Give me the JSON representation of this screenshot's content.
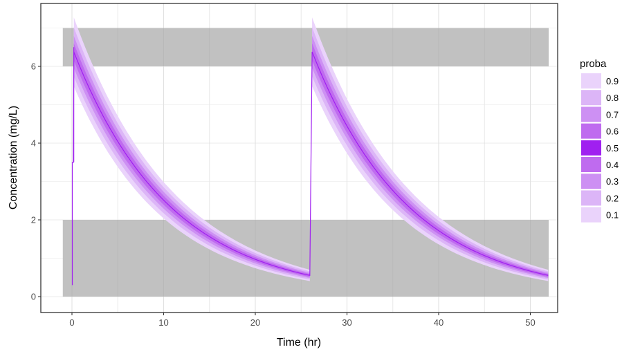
{
  "chart_data": {
    "type": "area",
    "title": "",
    "xlabel": "Time (hr)",
    "ylabel": "Concentration (mg/L)",
    "xlim": [
      -3.5,
      53
    ],
    "ylim": [
      -0.3,
      7.4
    ],
    "x_ticks": [
      0,
      10,
      20,
      30,
      40,
      50
    ],
    "y_ticks": [
      0,
      2,
      4,
      6
    ],
    "grid": true,
    "legend_position": "right",
    "legend": {
      "title": "proba",
      "entries": [
        {
          "label": "0.9",
          "color": "#ead3fb"
        },
        {
          "label": "0.8",
          "color": "#dcb5f7"
        },
        {
          "label": "0.7",
          "color": "#cd90f3"
        },
        {
          "label": "0.6",
          "color": "#bf6bef"
        },
        {
          "label": "0.5",
          "color": "#a020f0"
        },
        {
          "label": "0.4",
          "color": "#bf6bef"
        },
        {
          "label": "0.3",
          "color": "#cd90f3"
        },
        {
          "label": "0.2",
          "color": "#dcb5f7"
        },
        {
          "label": "0.1",
          "color": "#ead3fb"
        }
      ]
    },
    "reference_bands": [
      {
        "name": "therapeutic-lower-band",
        "ymin": 0,
        "ymax": 2,
        "xmin": -1,
        "xmax": 52,
        "color": "#bebebe"
      },
      {
        "name": "toxic-upper-band",
        "ymin": 6,
        "ymax": 7,
        "xmin": -1,
        "xmax": 52,
        "color": "#bebebe"
      }
    ],
    "model": {
      "dose_times": [
        0,
        26
      ],
      "peak_concentration": 6.5,
      "elimination_rate": 0.095,
      "end_time": 52,
      "band_widths": [
        0.035,
        0.065,
        0.1,
        0.14
      ],
      "median_color": "#a020f0"
    },
    "series": [
      {
        "name": "median (0.5)",
        "x": [
          0,
          2,
          5,
          10,
          15,
          20,
          26,
          26.2,
          28,
          31,
          36,
          41,
          46,
          52
        ],
        "values": [
          6.5,
          5.4,
          4.1,
          2.5,
          1.6,
          1.0,
          0.55,
          6.5,
          5.4,
          4.1,
          2.5,
          1.6,
          1.0,
          0.56
        ]
      }
    ]
  }
}
